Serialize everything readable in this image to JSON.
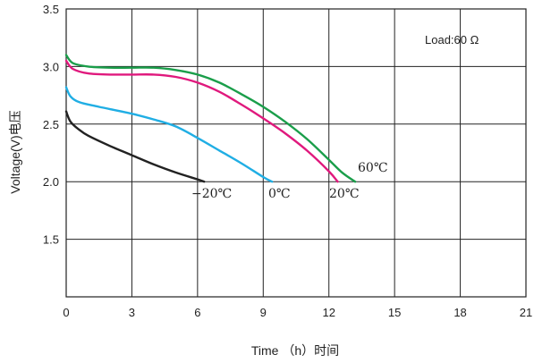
{
  "chart_data": {
    "type": "line",
    "xlabel": "Time （h）时间",
    "ylabel": "Voltage(V)电压",
    "annotation": "Load:60 Ω",
    "xlim": [
      0,
      21
    ],
    "ylim": [
      1.0,
      3.5
    ],
    "x_ticks": [
      "0",
      "3",
      "6",
      "9",
      "12",
      "15",
      "18",
      "21"
    ],
    "y_ticks": [
      "1.5",
      "2.0",
      "2.5",
      "3.0",
      "3.5"
    ],
    "grid": true,
    "series": [
      {
        "name": "60℃",
        "color": "#1a9e4a",
        "x": [
          0,
          0.3,
          1,
          2,
          3,
          4,
          5,
          6,
          7,
          8,
          9,
          10,
          11,
          12,
          12.6,
          13.2
        ],
        "y": [
          3.1,
          3.03,
          3.0,
          2.99,
          2.99,
          2.99,
          2.97,
          2.93,
          2.86,
          2.76,
          2.65,
          2.52,
          2.37,
          2.19,
          2.08,
          2.0
        ]
      },
      {
        "name": "20℃",
        "color": "#e0197d",
        "x": [
          0,
          0.3,
          1,
          2,
          3,
          4,
          5,
          6,
          7,
          8,
          9,
          10,
          11,
          12,
          12.4
        ],
        "y": [
          3.05,
          2.98,
          2.94,
          2.93,
          2.93,
          2.93,
          2.91,
          2.86,
          2.78,
          2.67,
          2.55,
          2.42,
          2.27,
          2.09,
          2.0
        ]
      },
      {
        "name": "0℃",
        "color": "#20aee4",
        "x": [
          0,
          0.2,
          0.6,
          1.5,
          3,
          4,
          5,
          6,
          7,
          8,
          9,
          9.4
        ],
        "y": [
          2.82,
          2.74,
          2.69,
          2.65,
          2.59,
          2.54,
          2.48,
          2.38,
          2.27,
          2.16,
          2.04,
          2.0
        ]
      },
      {
        "name": "-20℃",
        "color": "#222222",
        "x": [
          0,
          0.2,
          0.6,
          1,
          2,
          3,
          4,
          5,
          6,
          6.3
        ],
        "y": [
          2.61,
          2.52,
          2.45,
          2.4,
          2.31,
          2.23,
          2.15,
          2.08,
          2.02,
          2.0
        ]
      }
    ],
    "curve_labels": [
      "60℃",
      "20℃",
      "0℃",
      "−20℃"
    ]
  }
}
